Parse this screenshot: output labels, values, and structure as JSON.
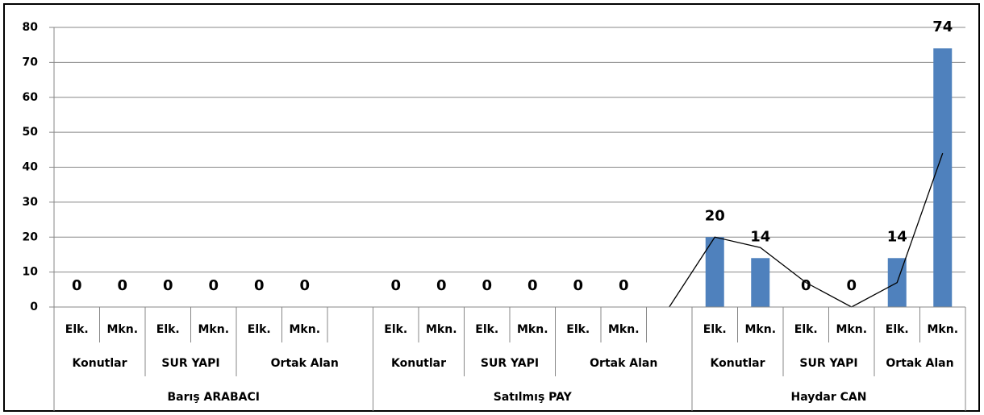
{
  "chart_data": {
    "type": "bar",
    "category_levels": [
      {
        "labels": [
          "Elk.",
          "Mkn.",
          "Elk.",
          "Mkn.",
          "Elk.",
          "Mkn.",
          null,
          "Elk.",
          "Mkn.",
          "Elk.",
          "Mkn.",
          "Elk.",
          "Mkn.",
          null,
          "Elk.",
          "Mkn.",
          "Elk.",
          "Mkn.",
          "Elk.",
          "Mkn."
        ]
      },
      {
        "groups": [
          {
            "label": "Konutlar",
            "span": 2
          },
          {
            "label": "SUR YAPI",
            "span": 2
          },
          {
            "label": "Ortak Alan",
            "span": 3
          },
          {
            "label": "Konutlar",
            "span": 2
          },
          {
            "label": "SUR YAPI",
            "span": 2
          },
          {
            "label": "Ortak Alan",
            "span": 3
          },
          {
            "label": "Konutlar",
            "span": 2
          },
          {
            "label": "SUR YAPI",
            "span": 2
          },
          {
            "label": "Ortak Alan",
            "span": 2
          }
        ]
      },
      {
        "groups": [
          {
            "label": "Barış ARABACI",
            "span": 7
          },
          {
            "label": "Satılmış PAY",
            "span": 7
          },
          {
            "label": "Haydar CAN",
            "span": 6
          }
        ]
      }
    ],
    "series": [
      {
        "type": "bar",
        "color": "#4f81bd",
        "data_labels": true,
        "values": [
          0,
          0,
          0,
          0,
          0,
          0,
          null,
          0,
          0,
          0,
          0,
          0,
          0,
          null,
          20,
          14,
          0,
          0,
          14,
          74
        ]
      },
      {
        "type": "line",
        "color": "#000000",
        "values": [
          null,
          null,
          null,
          null,
          null,
          null,
          null,
          null,
          null,
          null,
          null,
          null,
          null,
          0,
          20,
          17,
          7,
          0,
          7,
          44
        ]
      }
    ],
    "ylim": [
      0,
      80
    ],
    "yticks": [
      0,
      10,
      20,
      30,
      40,
      50,
      60,
      70,
      80
    ],
    "grid": true
  }
}
